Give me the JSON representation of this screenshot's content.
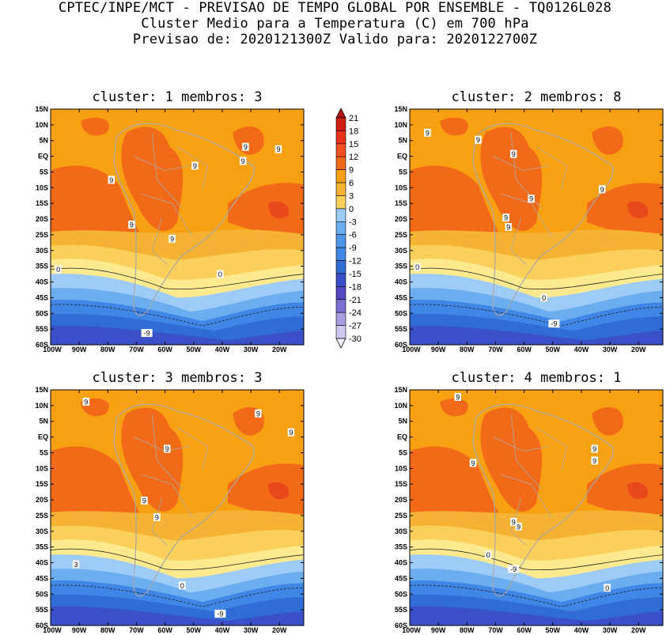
{
  "header": {
    "line1": "CPTEC/INPE/MCT - PREVISAO DE TEMPO GLOBAL POR ENSEMBLE - TQ0126L028",
    "line2": "Cluster Medio para a Temperatura (C) em 700 hPa",
    "line3": "Previsao de: 2020121300Z   Valido para: 2020122700Z"
  },
  "colors": {
    "ocean_bg": "#f7a012",
    "c9": "#f26a18",
    "c12": "#e8481a",
    "c6": "#f5b233",
    "c3": "#fbd05a",
    "c0": "#fde98e",
    "cm3": "#9ecbf7",
    "cm6": "#6aaef0",
    "cm9": "#3f86e6",
    "cm12": "#2f6cd6",
    "cm15": "#3a4fc8",
    "cm18": "#5547c2",
    "border_gray": "#a8a8a8"
  },
  "y_ticks": [
    "15N",
    "10N",
    "5N",
    "EQ",
    "5S",
    "10S",
    "15S",
    "20S",
    "25S",
    "30S",
    "35S",
    "40S",
    "45S",
    "50S",
    "55S",
    "60S"
  ],
  "x_ticks": [
    "100W",
    "90W",
    "80W",
    "70W",
    "60W",
    "50W",
    "40W",
    "30W",
    "20W"
  ],
  "colorbar": {
    "labels": [
      "21",
      "18",
      "15",
      "12",
      "9",
      "6",
      "3",
      "0",
      "-3",
      "-6",
      "-9",
      "-12",
      "-15",
      "-18",
      "-21",
      "-24",
      "-27",
      "-30"
    ],
    "colors": [
      "#b01010",
      "#cf1e14",
      "#e8321a",
      "#f05022",
      "#f26a18",
      "#f7a012",
      "#f5b233",
      "#fbd05a",
      "#9ecbf7",
      "#6aaef0",
      "#4f95e8",
      "#3f86e6",
      "#2f6cd6",
      "#3a4fc8",
      "#5547c2",
      "#7a6fd0",
      "#a99de0",
      "#cfc8ee",
      "#efecfb"
    ]
  },
  "panels": [
    {
      "title": "cluster: 1   membros: 3",
      "labels": [
        "9",
        "9",
        "9",
        "9",
        "9",
        "9",
        "9",
        "0",
        "0",
        "-9"
      ]
    },
    {
      "title": "cluster: 2   membros: 8",
      "labels": [
        "9",
        "9",
        "9",
        "9",
        "9",
        "9",
        "9",
        "0",
        "0",
        "-9"
      ]
    },
    {
      "title": "cluster: 3   membros: 3",
      "labels": [
        "9",
        "9",
        "9",
        "9",
        "9",
        "9",
        "3",
        "0",
        "-9"
      ]
    },
    {
      "title": "cluster: 4   membros: 1",
      "labels": [
        "9",
        "9",
        "9",
        "9",
        "9",
        "9",
        "0",
        "-9",
        "0"
      ]
    }
  ]
}
